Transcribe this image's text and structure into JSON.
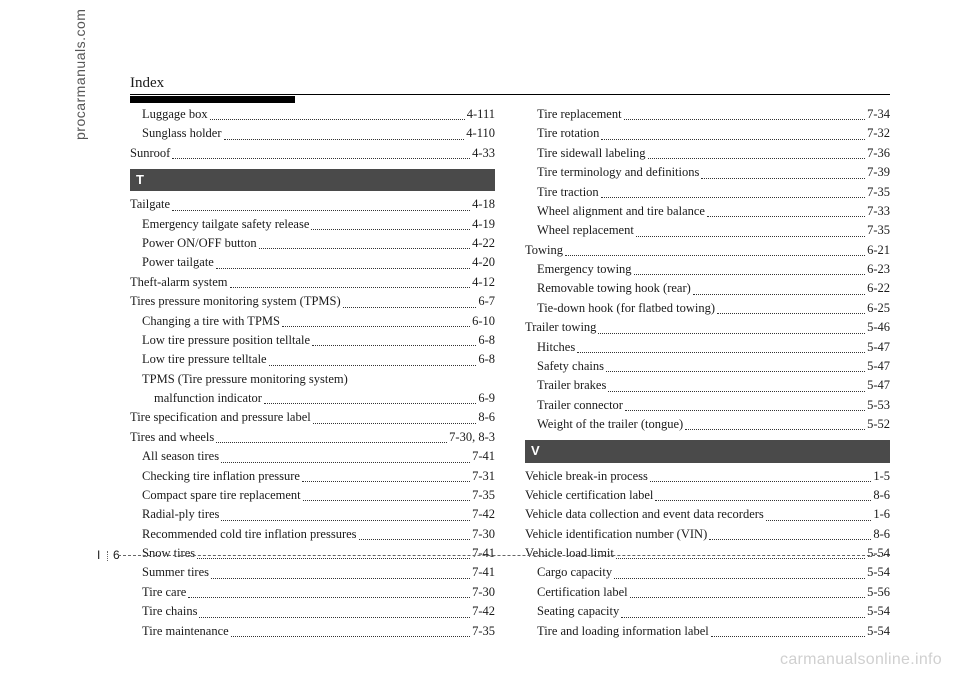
{
  "header_title": "Index",
  "spine_text": "procarmanuals.com",
  "page_number_prefix": "I",
  "page_number": "6",
  "watermark": "carmanualsonline.info",
  "left_col": [
    {
      "type": "entry",
      "indent": 1,
      "text": "Luggage box",
      "page": "4-111"
    },
    {
      "type": "entry",
      "indent": 1,
      "text": "Sunglass holder",
      "page": "4-110"
    },
    {
      "type": "entry",
      "indent": 0,
      "text": "Sunroof",
      "page": "4-33"
    },
    {
      "type": "section",
      "label": "T"
    },
    {
      "type": "entry",
      "indent": 0,
      "text": "Tailgate",
      "page": "4-18"
    },
    {
      "type": "entry",
      "indent": 1,
      "text": "Emergency tailgate safety release",
      "page": "4-19"
    },
    {
      "type": "entry",
      "indent": 1,
      "text": "Power ON/OFF button",
      "page": "4-22"
    },
    {
      "type": "entry",
      "indent": 1,
      "text": "Power tailgate",
      "page": "4-20"
    },
    {
      "type": "entry",
      "indent": 0,
      "text": "Theft-alarm system",
      "page": "4-12"
    },
    {
      "type": "entry",
      "indent": 0,
      "text": "Tires pressure monitoring system (TPMS)",
      "page": "6-7"
    },
    {
      "type": "entry",
      "indent": 1,
      "text": "Changing a tire with TPMS",
      "page": "6-10"
    },
    {
      "type": "entry",
      "indent": 1,
      "text": "Low tire pressure position telltale",
      "page": "6-8"
    },
    {
      "type": "entry",
      "indent": 1,
      "text": "Low tire pressure telltale",
      "page": "6-8"
    },
    {
      "type": "entry2",
      "indent": 1,
      "text1": "TPMS (Tire pressure monitoring system)",
      "text2": "malfunction indicator",
      "page": "6-9"
    },
    {
      "type": "entry",
      "indent": 0,
      "text": "Tire specification and pressure label",
      "page": "8-6"
    },
    {
      "type": "entry",
      "indent": 0,
      "text": "Tires and wheels",
      "page": "7-30, 8-3"
    },
    {
      "type": "entry",
      "indent": 1,
      "text": "All season tires",
      "page": "7-41"
    },
    {
      "type": "entry",
      "indent": 1,
      "text": "Checking tire inflation pressure",
      "page": "7-31"
    },
    {
      "type": "entry",
      "indent": 1,
      "text": "Compact spare tire replacement",
      "page": "7-35"
    },
    {
      "type": "entry",
      "indent": 1,
      "text": "Radial-ply tires",
      "page": "7-42"
    },
    {
      "type": "entry",
      "indent": 1,
      "text": "Recommended cold tire inflation pressures",
      "page": "7-30"
    },
    {
      "type": "entry",
      "indent": 1,
      "text": "Snow tires",
      "page": "7-41"
    },
    {
      "type": "entry",
      "indent": 1,
      "text": "Summer tires",
      "page": "7-41"
    },
    {
      "type": "entry",
      "indent": 1,
      "text": "Tire care",
      "page": "7-30"
    },
    {
      "type": "entry",
      "indent": 1,
      "text": "Tire chains",
      "page": "7-42"
    },
    {
      "type": "entry",
      "indent": 1,
      "text": "Tire maintenance",
      "page": "7-35"
    }
  ],
  "right_col": [
    {
      "type": "entry",
      "indent": 1,
      "text": "Tire replacement",
      "page": "7-34"
    },
    {
      "type": "entry",
      "indent": 1,
      "text": "Tire rotation",
      "page": "7-32"
    },
    {
      "type": "entry",
      "indent": 1,
      "text": "Tire sidewall labeling",
      "page": "7-36"
    },
    {
      "type": "entry",
      "indent": 1,
      "text": "Tire terminology and definitions",
      "page": "7-39"
    },
    {
      "type": "entry",
      "indent": 1,
      "text": "Tire traction",
      "page": "7-35"
    },
    {
      "type": "entry",
      "indent": 1,
      "text": "Wheel alignment and tire balance",
      "page": "7-33"
    },
    {
      "type": "entry",
      "indent": 1,
      "text": "Wheel replacement",
      "page": "7-35"
    },
    {
      "type": "entry",
      "indent": 0,
      "text": "Towing",
      "page": "6-21"
    },
    {
      "type": "entry",
      "indent": 1,
      "text": "Emergency towing",
      "page": "6-23"
    },
    {
      "type": "entry",
      "indent": 1,
      "text": "Removable towing hook (rear)",
      "page": "6-22"
    },
    {
      "type": "entry",
      "indent": 1,
      "text": "Tie-down hook (for flatbed towing)",
      "page": "6-25"
    },
    {
      "type": "entry",
      "indent": 0,
      "text": "Trailer towing",
      "page": "5-46"
    },
    {
      "type": "entry",
      "indent": 1,
      "text": "Hitches",
      "page": "5-47"
    },
    {
      "type": "entry",
      "indent": 1,
      "text": "Safety chains",
      "page": "5-47"
    },
    {
      "type": "entry",
      "indent": 1,
      "text": "Trailer brakes",
      "page": "5-47"
    },
    {
      "type": "entry",
      "indent": 1,
      "text": "Trailer connector",
      "page": "5-53"
    },
    {
      "type": "entry",
      "indent": 1,
      "text": "Weight of the trailer (tongue)",
      "page": "5-52"
    },
    {
      "type": "section",
      "label": "V"
    },
    {
      "type": "entry",
      "indent": 0,
      "text": "Vehicle break-in process",
      "page": "1-5"
    },
    {
      "type": "entry",
      "indent": 0,
      "text": "Vehicle certification label",
      "page": "8-6"
    },
    {
      "type": "entry",
      "indent": 0,
      "text": "Vehicle data collection and event data recorders",
      "page": "1-6"
    },
    {
      "type": "entry",
      "indent": 0,
      "text": "Vehicle identification number (VIN)",
      "page": "8-6"
    },
    {
      "type": "entry",
      "indent": 0,
      "text": "Vehicle load limit",
      "page": "5-54"
    },
    {
      "type": "entry",
      "indent": 1,
      "text": "Cargo capacity",
      "page": "5-54"
    },
    {
      "type": "entry",
      "indent": 1,
      "text": "Certification label",
      "page": "5-56"
    },
    {
      "type": "entry",
      "indent": 1,
      "text": "Seating capacity",
      "page": "5-54"
    },
    {
      "type": "entry",
      "indent": 1,
      "text": "Tire and loading information label",
      "page": "5-54"
    }
  ]
}
